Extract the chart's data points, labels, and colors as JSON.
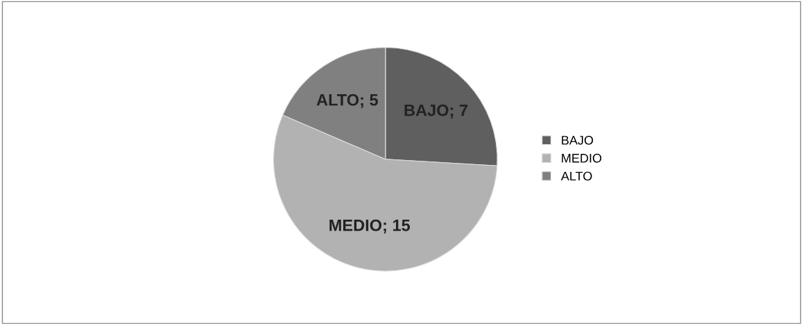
{
  "chart_data": {
    "type": "pie",
    "categories": [
      "BAJO",
      "MEDIO",
      "ALTO"
    ],
    "values": [
      7,
      15,
      5
    ],
    "colors": [
      "#5f5f5f",
      "#b2b2b2",
      "#808080"
    ],
    "value_labels": [
      "BAJO; 7",
      "MEDIO; 15",
      "ALTO; 5"
    ],
    "legend": "right"
  }
}
